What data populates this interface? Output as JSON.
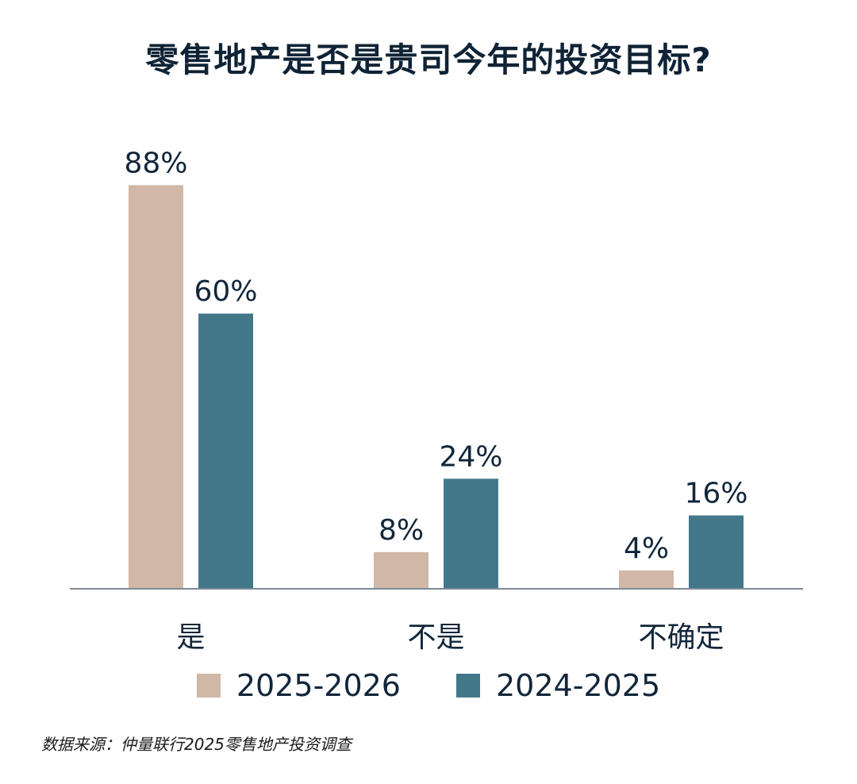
{
  "chart_data": {
    "type": "bar",
    "title": "零售地产是否是贵司今年的投资目标?",
    "categories": [
      "是",
      "不是",
      "不确定"
    ],
    "series": [
      {
        "name": "2025-2026",
        "values": [
          88,
          8,
          4
        ],
        "labels": [
          "88%",
          "8%",
          "4%"
        ],
        "color": "#d0b7a6"
      },
      {
        "name": "2024-2025",
        "values": [
          60,
          24,
          16
        ],
        "labels": [
          "60%",
          "24%",
          "16%"
        ],
        "color": "#43788b"
      }
    ],
    "ylim": [
      0,
      100
    ],
    "grid": false,
    "legend_position": "bottom",
    "axis_color": "#7f8c96"
  },
  "source": "数据来源：仲量联行2025零售地产投资调查"
}
